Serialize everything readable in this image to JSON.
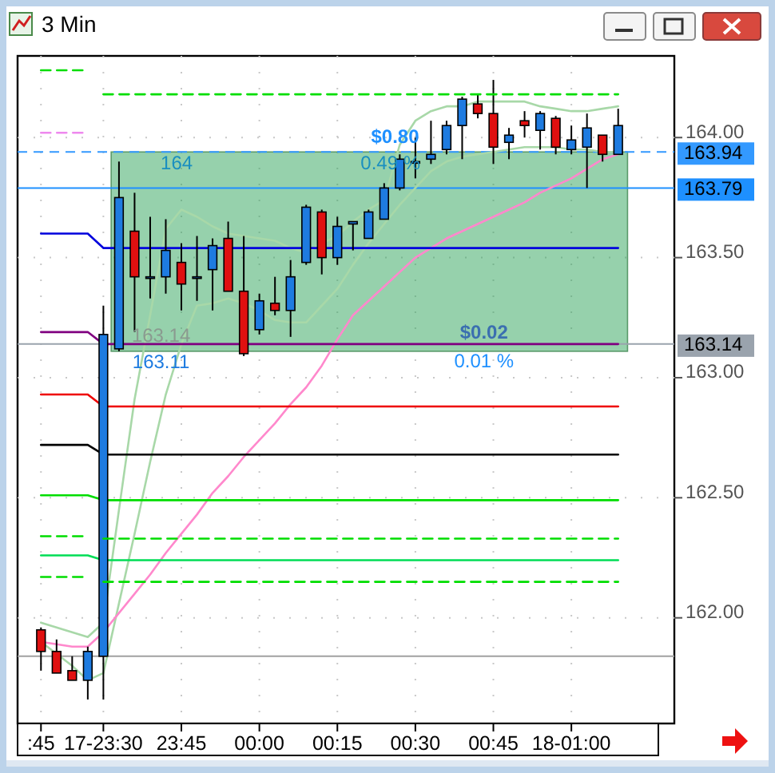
{
  "chart_data": {
    "type": "candlestick",
    "title": "3 Min",
    "categories": [
      ":45",
      null,
      null,
      null,
      "17-23:30",
      null,
      null,
      null,
      null,
      "23:45",
      null,
      null,
      null,
      null,
      "00:00",
      null,
      null,
      null,
      null,
      "00:15",
      null,
      null,
      null,
      null,
      "00:30",
      null,
      null,
      null,
      null,
      "00:45",
      null,
      null,
      null,
      null,
      "18-01:00",
      null,
      null,
      null
    ],
    "ohlc": [
      [
        161.95,
        161.96,
        161.78,
        161.86
      ],
      [
        161.86,
        161.91,
        161.77,
        161.77
      ],
      [
        161.78,
        161.84,
        161.74,
        161.74
      ],
      [
        161.74,
        161.88,
        161.66,
        161.86
      ],
      [
        161.84,
        163.3,
        161.66,
        163.18
      ],
      [
        163.12,
        163.9,
        163.11,
        163.75
      ],
      [
        163.61,
        163.77,
        163.19,
        163.42
      ],
      [
        163.42,
        163.67,
        163.33,
        163.42
      ],
      [
        163.42,
        163.66,
        163.35,
        163.53
      ],
      [
        163.48,
        163.56,
        163.28,
        163.39
      ],
      [
        163.42,
        163.59,
        163.32,
        163.42
      ],
      [
        163.45,
        163.58,
        163.28,
        163.55
      ],
      [
        163.58,
        163.65,
        163.36,
        163.36
      ],
      [
        163.36,
        163.59,
        163.09,
        163.1
      ],
      [
        163.2,
        163.35,
        163.18,
        163.32
      ],
      [
        163.31,
        163.42,
        163.26,
        163.28
      ],
      [
        163.28,
        163.49,
        163.17,
        163.42
      ],
      [
        163.48,
        163.72,
        163.47,
        163.71
      ],
      [
        163.69,
        163.7,
        163.43,
        163.5
      ],
      [
        163.5,
        163.67,
        163.47,
        163.63
      ],
      [
        163.64,
        163.65,
        163.53,
        163.65
      ],
      [
        163.58,
        163.7,
        163.58,
        163.69
      ],
      [
        163.66,
        163.81,
        163.66,
        163.79
      ],
      [
        163.79,
        163.93,
        163.78,
        163.91
      ],
      [
        163.9,
        164.0,
        163.83,
        163.9
      ],
      [
        163.91,
        164.07,
        163.89,
        163.93
      ],
      [
        163.95,
        164.07,
        163.93,
        164.05
      ],
      [
        164.05,
        164.17,
        163.91,
        164.16
      ],
      [
        164.14,
        164.18,
        164.08,
        164.1
      ],
      [
        164.1,
        164.24,
        163.89,
        163.96
      ],
      [
        163.98,
        164.04,
        163.91,
        164.01
      ],
      [
        164.07,
        164.11,
        164.0,
        164.05
      ],
      [
        164.03,
        164.11,
        163.95,
        164.1
      ],
      [
        164.08,
        164.09,
        163.93,
        163.96
      ],
      [
        163.95,
        164.05,
        163.93,
        163.99
      ],
      [
        163.96,
        164.1,
        163.79,
        164.04
      ],
      [
        164.01,
        164.01,
        163.9,
        163.93
      ],
      [
        163.93,
        164.12,
        163.93,
        164.05
      ]
    ],
    "colors": [
      "#e01010",
      "#e01010",
      "#e01010",
      "#1e7be0",
      "#1e7be0",
      "#1e7be0",
      "#e01010",
      "#1e7be0",
      "#1e7be0",
      "#e01010",
      "#1e7be0",
      "#1e7be0",
      "#e01010",
      "#e01010",
      "#1e7be0",
      "#e01010",
      "#1e7be0",
      "#1e7be0",
      "#e01010",
      "#1e7be0",
      "#1e7be0",
      "#1e7be0",
      "#1e7be0",
      "#1e7be0",
      "#1e7be0",
      "#1e7be0",
      "#1e7be0",
      "#1e7be0",
      "#e01010",
      "#e01010",
      "#1e7be0",
      "#e01010",
      "#1e7be0",
      "#e01010",
      "#1e7be0",
      "#1e7be0",
      "#e01010",
      "#1e7be0"
    ],
    "series": [
      {
        "type": "line",
        "color": "#a8d8a8",
        "values": [
          161.98,
          161.96,
          161.94,
          161.92,
          161.98,
          162.45,
          162.91,
          163.26,
          163.62,
          163.7,
          163.67,
          163.63,
          163.6,
          163.59,
          163.58,
          163.57,
          163.54,
          163.52,
          163.56,
          163.59,
          163.65,
          163.7,
          163.74,
          163.97,
          164.07,
          164.11,
          164.13,
          164.13,
          164.15,
          164.15,
          164.15,
          164.15,
          164.13,
          164.12,
          164.11,
          164.11,
          164.12,
          164.13
        ]
      },
      {
        "type": "line",
        "color": "#a8d8a8",
        "values": [
          161.9,
          161.85,
          161.8,
          161.74,
          161.77,
          162.06,
          162.35,
          162.65,
          162.93,
          163.14,
          163.3,
          163.31,
          163.33,
          163.31,
          163.28,
          163.24,
          163.23,
          163.23,
          163.3,
          163.37,
          163.47,
          163.56,
          163.64,
          163.72,
          163.79,
          163.86,
          163.9,
          163.92,
          163.93,
          163.94,
          163.95,
          163.96,
          163.96,
          163.96,
          163.95,
          163.95,
          163.94,
          163.94
        ]
      },
      {
        "type": "line",
        "color": "#ff88cc",
        "values": [
          161.9,
          161.89,
          161.88,
          161.88,
          161.94,
          162.02,
          162.1,
          162.18,
          162.27,
          162.35,
          162.43,
          162.52,
          162.59,
          162.67,
          162.74,
          162.81,
          162.89,
          162.96,
          163.05,
          163.16,
          163.26,
          163.32,
          163.38,
          163.44,
          163.5,
          163.54,
          163.58,
          163.61,
          163.64,
          163.67,
          163.7,
          163.73,
          163.77,
          163.8,
          163.83,
          163.87,
          163.91,
          163.93
        ]
      },
      {
        "type": "line",
        "color": "#00dd00",
        "line_style": "dashed",
        "values": [
          164.28,
          164.28,
          164.28,
          164.28,
          null,
          null,
          null,
          null,
          null,
          null,
          null,
          null,
          null,
          null,
          null,
          null,
          null,
          null,
          null,
          null,
          null,
          null,
          null,
          null,
          null,
          null,
          null,
          null,
          null,
          null,
          null,
          null,
          null,
          null,
          null,
          null,
          null,
          null
        ]
      },
      {
        "type": "line",
        "color": "#00dd00",
        "line_style": "dashed",
        "values": [
          null,
          null,
          null,
          null,
          164.18,
          164.18,
          164.18,
          164.18,
          164.18,
          164.18,
          164.18,
          164.18,
          164.18,
          164.18,
          164.18,
          164.18,
          164.18,
          164.18,
          164.18,
          164.18,
          164.18,
          164.18,
          164.18,
          164.18,
          164.18,
          164.18,
          164.18,
          164.18,
          164.18,
          164.18,
          164.18,
          164.18,
          164.18,
          164.18,
          164.18,
          164.18,
          164.18,
          164.18
        ]
      },
      {
        "type": "line",
        "color": "#ee88ee",
        "line_style": "dashed",
        "values": [
          164.02,
          164.02,
          164.02,
          164.02,
          null,
          null,
          null,
          null,
          null,
          null,
          null,
          null,
          null,
          null,
          null,
          null,
          null,
          null,
          null,
          null,
          null,
          null,
          null,
          null,
          null,
          null,
          null,
          null,
          null,
          null,
          null,
          null,
          null,
          null,
          null,
          null,
          null,
          null
        ]
      },
      {
        "type": "line",
        "color": "#0000dd",
        "values": [
          163.6,
          163.6,
          163.6,
          163.6,
          163.54,
          163.54,
          163.54,
          163.54,
          163.54,
          163.54,
          163.54,
          163.54,
          163.54,
          163.54,
          163.54,
          163.54,
          163.54,
          163.54,
          163.54,
          163.54,
          163.54,
          163.54,
          163.54,
          163.54,
          163.54,
          163.54,
          163.54,
          163.54,
          163.54,
          163.54,
          163.54,
          163.54,
          163.54,
          163.54,
          163.54,
          163.54,
          163.54,
          163.54
        ]
      },
      {
        "type": "line",
        "color": "#800080",
        "values": [
          163.19,
          163.19,
          163.19,
          163.19,
          163.14,
          163.14,
          163.14,
          163.14,
          163.14,
          163.14,
          163.14,
          163.14,
          163.14,
          163.14,
          163.14,
          163.14,
          163.14,
          163.14,
          163.14,
          163.14,
          163.14,
          163.14,
          163.14,
          163.14,
          163.14,
          163.14,
          163.14,
          163.14,
          163.14,
          163.14,
          163.14,
          163.14,
          163.14,
          163.14,
          163.14,
          163.14,
          163.14,
          163.14
        ]
      },
      {
        "type": "line",
        "color": "#ee0000",
        "values": [
          162.93,
          162.93,
          162.93,
          162.93,
          162.88,
          162.88,
          162.88,
          162.88,
          162.88,
          162.88,
          162.88,
          162.88,
          162.88,
          162.88,
          162.88,
          162.88,
          162.88,
          162.88,
          162.88,
          162.88,
          162.88,
          162.88,
          162.88,
          162.88,
          162.88,
          162.88,
          162.88,
          162.88,
          162.88,
          162.88,
          162.88,
          162.88,
          162.88,
          162.88,
          162.88,
          162.88,
          162.88,
          162.88
        ]
      },
      {
        "type": "line",
        "color": "#000000",
        "values": [
          162.72,
          162.72,
          162.72,
          162.72,
          162.68,
          162.68,
          162.68,
          162.68,
          162.68,
          162.68,
          162.68,
          162.68,
          162.68,
          162.68,
          162.68,
          162.68,
          162.68,
          162.68,
          162.68,
          162.68,
          162.68,
          162.68,
          162.68,
          162.68,
          162.68,
          162.68,
          162.68,
          162.68,
          162.68,
          162.68,
          162.68,
          162.68,
          162.68,
          162.68,
          162.68,
          162.68,
          162.68,
          162.68
        ]
      },
      {
        "type": "line",
        "color": "#00dd00",
        "values": [
          162.51,
          162.51,
          162.51,
          162.51,
          162.49,
          162.49,
          162.49,
          162.49,
          162.49,
          162.49,
          162.49,
          162.49,
          162.49,
          162.49,
          162.49,
          162.49,
          162.49,
          162.49,
          162.49,
          162.49,
          162.49,
          162.49,
          162.49,
          162.49,
          162.49,
          162.49,
          162.49,
          162.49,
          162.49,
          162.49,
          162.49,
          162.49,
          162.49,
          162.49,
          162.49,
          162.49,
          162.49,
          162.49
        ]
      },
      {
        "type": "line",
        "color": "#00dd00",
        "line_style": "dashed",
        "values": [
          162.34,
          162.34,
          162.34,
          162.34,
          null,
          null,
          null,
          null,
          null,
          null,
          null,
          null,
          null,
          null,
          null,
          null,
          null,
          null,
          null,
          null,
          null,
          null,
          null,
          null,
          null,
          null,
          null,
          null,
          null,
          null,
          null,
          null,
          null,
          null,
          null,
          null,
          null,
          null
        ]
      },
      {
        "type": "line",
        "color": "#00dd00",
        "line_style": "dashed",
        "values": [
          null,
          null,
          null,
          null,
          162.33,
          162.33,
          162.33,
          162.33,
          162.33,
          162.33,
          162.33,
          162.33,
          162.33,
          162.33,
          162.33,
          162.33,
          162.33,
          162.33,
          162.33,
          162.33,
          162.33,
          162.33,
          162.33,
          162.33,
          162.33,
          162.33,
          162.33,
          162.33,
          162.33,
          162.33,
          162.33,
          162.33,
          162.33,
          162.33,
          162.33,
          162.33,
          162.33,
          162.33
        ]
      },
      {
        "type": "line",
        "color": "#00dd55",
        "values": [
          162.26,
          162.26,
          162.26,
          162.26,
          162.24,
          162.24,
          162.24,
          162.24,
          162.24,
          162.24,
          162.24,
          162.24,
          162.24,
          162.24,
          162.24,
          162.24,
          162.24,
          162.24,
          162.24,
          162.24,
          162.24,
          162.24,
          162.24,
          162.24,
          162.24,
          162.24,
          162.24,
          162.24,
          162.24,
          162.24,
          162.24,
          162.24,
          162.24,
          162.24,
          162.24,
          162.24,
          162.24,
          162.24
        ]
      },
      {
        "type": "line",
        "color": "#00dd00",
        "line_style": "dashed",
        "values": [
          162.17,
          162.17,
          162.17,
          162.17,
          null,
          null,
          null,
          null,
          null,
          null,
          null,
          null,
          null,
          null,
          null,
          null,
          null,
          null,
          null,
          null,
          null,
          null,
          null,
          null,
          null,
          null,
          null,
          null,
          null,
          null,
          null,
          null,
          null,
          null,
          null,
          null,
          null,
          null
        ]
      },
      {
        "type": "line",
        "color": "#00dd00",
        "line_style": "dashed",
        "values": [
          null,
          null,
          null,
          null,
          162.15,
          162.15,
          162.15,
          162.15,
          162.15,
          162.15,
          162.15,
          162.15,
          162.15,
          162.15,
          162.15,
          162.15,
          162.15,
          162.15,
          162.15,
          162.15,
          162.15,
          162.15,
          162.15,
          162.15,
          162.15,
          162.15,
          162.15,
          162.15,
          162.15,
          162.15,
          162.15,
          162.15,
          162.15,
          162.15,
          162.15,
          162.15,
          162.15,
          162.15
        ]
      }
    ],
    "ylim": [
      161.56,
      164.34
    ],
    "yticks": [
      {
        "value": 162,
        "label": "162.00"
      },
      {
        "value": 162.5,
        "label": "162.50"
      },
      {
        "value": 163,
        "label": "163.00"
      },
      {
        "value": 163.5,
        "label": "163.50"
      },
      {
        "value": 164,
        "label": "164.00"
      }
    ],
    "grid": true,
    "bands": [
      {
        "axis": "y",
        "from": 163.11,
        "to": 163.94,
        "color": "#2ea35a"
      }
    ],
    "ref_lines": [
      {
        "axis": "y",
        "value": 161.84,
        "color": "#a0a0a0"
      },
      {
        "axis": "y",
        "value": 163.79,
        "label": "163.79",
        "color": "#1e90ff"
      },
      {
        "axis": "y",
        "value": 163.14,
        "label": "163.14",
        "color": "#9aa3ad"
      },
      {
        "axis": "y",
        "value": 163.94,
        "label": "163.94",
        "color": "#3399ff",
        "line_style": "dashed"
      }
    ],
    "annotations": [
      "164",
      "$0.80",
      "0.49 %",
      "163.11",
      "163.14",
      "$0.02",
      "0.01 %"
    ]
  }
}
